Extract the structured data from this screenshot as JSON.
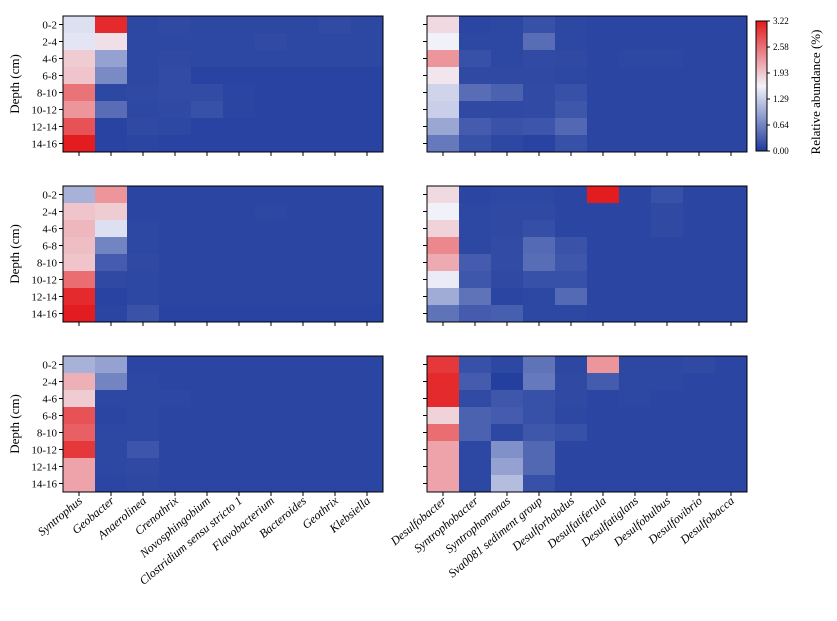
{
  "chart_data": {
    "type": "heatmap",
    "ylabel": "Depth (cm)",
    "depths": [
      "0-2",
      "2-4",
      "4-6",
      "6-8",
      "8-10",
      "10-12",
      "12-14",
      "14-16"
    ],
    "left_genera": [
      "Syntrophus",
      "Geobacter",
      "Anaerolinea",
      "Crenothrix",
      "Novosphingobium",
      "Clostridium sensu stricto 1",
      "Flavobacterium",
      "Bacteroides",
      "Geothrix",
      "Klebsiella"
    ],
    "right_genera": [
      "Desulfobacter",
      "Syntrophobacter",
      "Syntrophomonas",
      "Sva0081 sediment group",
      "Desulforhabdus",
      "Desulfatiferula",
      "Desulfatiglans",
      "Desulfobulbus",
      "Desulfovibrio",
      "Desulfobacca"
    ],
    "colorbar": {
      "label": "Relative abundance (%)",
      "min": 0.0,
      "max": 3.22,
      "ticks": [
        "3.22",
        "2.58",
        "1.93",
        "1.29",
        "0.64",
        "0.00"
      ],
      "colors": [
        "#1d3a9c",
        "#f2f2fa",
        "#e31a1c"
      ]
    },
    "panels": [
      {
        "name": "row1-left",
        "values": [
          [
            1.45,
            3.1,
            0.12,
            0.14,
            0.12,
            0.12,
            0.12,
            0.12,
            0.15,
            0.12
          ],
          [
            1.5,
            1.75,
            0.12,
            0.12,
            0.12,
            0.12,
            0.15,
            0.12,
            0.12,
            0.12
          ],
          [
            1.9,
            0.9,
            0.12,
            0.14,
            0.12,
            0.12,
            0.12,
            0.12,
            0.12,
            0.12
          ],
          [
            1.95,
            0.7,
            0.12,
            0.16,
            0.08,
            0.08,
            0.08,
            0.08,
            0.08,
            0.08
          ],
          [
            2.55,
            0.12,
            0.14,
            0.16,
            0.16,
            0.1,
            0.08,
            0.08,
            0.08,
            0.08
          ],
          [
            2.3,
            0.45,
            0.12,
            0.14,
            0.2,
            0.1,
            0.08,
            0.08,
            0.08,
            0.08
          ],
          [
            2.8,
            0.08,
            0.14,
            0.12,
            0.08,
            0.08,
            0.08,
            0.08,
            0.08,
            0.08
          ],
          [
            3.2,
            0.08,
            0.1,
            0.08,
            0.08,
            0.08,
            0.08,
            0.08,
            0.08,
            0.08
          ]
        ]
      },
      {
        "name": "row1-right",
        "values": [
          [
            1.8,
            0.1,
            0.12,
            0.2,
            0.12,
            0.1,
            0.1,
            0.1,
            0.1,
            0.1
          ],
          [
            1.6,
            0.12,
            0.12,
            0.45,
            0.12,
            0.1,
            0.1,
            0.1,
            0.1,
            0.1
          ],
          [
            2.3,
            0.2,
            0.12,
            0.15,
            0.14,
            0.1,
            0.12,
            0.12,
            0.1,
            0.1
          ],
          [
            1.7,
            0.14,
            0.14,
            0.14,
            0.12,
            0.1,
            0.1,
            0.1,
            0.1,
            0.1
          ],
          [
            1.35,
            0.45,
            0.35,
            0.15,
            0.2,
            0.1,
            0.1,
            0.1,
            0.1,
            0.1
          ],
          [
            1.3,
            0.14,
            0.14,
            0.15,
            0.25,
            0.1,
            0.1,
            0.1,
            0.1,
            0.1
          ],
          [
            0.95,
            0.3,
            0.22,
            0.24,
            0.4,
            0.1,
            0.1,
            0.1,
            0.1,
            0.1
          ],
          [
            0.55,
            0.2,
            0.12,
            0.08,
            0.2,
            0.1,
            0.1,
            0.1,
            0.1,
            0.1
          ]
        ]
      },
      {
        "name": "row2-left",
        "values": [
          [
            1.05,
            2.3,
            0.1,
            0.1,
            0.1,
            0.1,
            0.1,
            0.1,
            0.1,
            0.1
          ],
          [
            1.95,
            1.9,
            0.1,
            0.1,
            0.1,
            0.1,
            0.12,
            0.1,
            0.1,
            0.1
          ],
          [
            2.05,
            1.45,
            0.12,
            0.1,
            0.1,
            0.1,
            0.1,
            0.1,
            0.1,
            0.1
          ],
          [
            2.0,
            0.65,
            0.12,
            0.1,
            0.1,
            0.1,
            0.1,
            0.1,
            0.1,
            0.1
          ],
          [
            1.95,
            0.3,
            0.14,
            0.1,
            0.1,
            0.1,
            0.1,
            0.1,
            0.1,
            0.1
          ],
          [
            2.6,
            0.14,
            0.12,
            0.1,
            0.1,
            0.1,
            0.1,
            0.1,
            0.1,
            0.1
          ],
          [
            3.1,
            0.08,
            0.12,
            0.1,
            0.1,
            0.1,
            0.1,
            0.1,
            0.1,
            0.1
          ],
          [
            3.2,
            0.1,
            0.22,
            0.08,
            0.08,
            0.08,
            0.08,
            0.08,
            0.08,
            0.08
          ]
        ]
      },
      {
        "name": "row2-right",
        "values": [
          [
            1.8,
            0.1,
            0.12,
            0.12,
            0.1,
            3.2,
            0.1,
            0.2,
            0.1,
            0.1
          ],
          [
            1.6,
            0.12,
            0.14,
            0.14,
            0.1,
            0.1,
            0.1,
            0.14,
            0.1,
            0.1
          ],
          [
            1.85,
            0.12,
            0.14,
            0.18,
            0.1,
            0.1,
            0.1,
            0.14,
            0.1,
            0.1
          ],
          [
            2.4,
            0.12,
            0.16,
            0.42,
            0.22,
            0.1,
            0.1,
            0.1,
            0.1,
            0.1
          ],
          [
            2.15,
            0.3,
            0.16,
            0.45,
            0.25,
            0.1,
            0.1,
            0.1,
            0.1,
            0.1
          ],
          [
            1.55,
            0.25,
            0.14,
            0.2,
            0.2,
            0.1,
            0.1,
            0.1,
            0.1,
            0.1
          ],
          [
            1.0,
            0.5,
            0.1,
            0.12,
            0.42,
            0.1,
            0.1,
            0.1,
            0.1,
            0.1
          ],
          [
            0.5,
            0.3,
            0.32,
            0.12,
            0.12,
            0.1,
            0.1,
            0.1,
            0.1,
            0.1
          ]
        ]
      },
      {
        "name": "row3-left",
        "values": [
          [
            1.05,
            0.9,
            0.1,
            0.1,
            0.1,
            0.1,
            0.1,
            0.1,
            0.1,
            0.1
          ],
          [
            2.1,
            0.65,
            0.12,
            0.1,
            0.1,
            0.1,
            0.1,
            0.1,
            0.1,
            0.1
          ],
          [
            1.9,
            0.12,
            0.12,
            0.12,
            0.1,
            0.1,
            0.1,
            0.1,
            0.1,
            0.1
          ],
          [
            2.8,
            0.1,
            0.12,
            0.1,
            0.1,
            0.1,
            0.1,
            0.1,
            0.1,
            0.1
          ],
          [
            2.7,
            0.12,
            0.12,
            0.1,
            0.1,
            0.1,
            0.1,
            0.1,
            0.1,
            0.1
          ],
          [
            3.0,
            0.12,
            0.24,
            0.1,
            0.1,
            0.1,
            0.1,
            0.1,
            0.1,
            0.1
          ],
          [
            2.2,
            0.12,
            0.14,
            0.1,
            0.1,
            0.1,
            0.1,
            0.1,
            0.1,
            0.1
          ],
          [
            2.2,
            0.1,
            0.12,
            0.1,
            0.1,
            0.1,
            0.1,
            0.1,
            0.1,
            0.1
          ]
        ]
      },
      {
        "name": "row3-right",
        "values": [
          [
            3.0,
            0.2,
            0.12,
            0.5,
            0.12,
            2.3,
            0.12,
            0.12,
            0.14,
            0.1
          ],
          [
            3.1,
            0.3,
            0.05,
            0.55,
            0.14,
            0.3,
            0.12,
            0.12,
            0.1,
            0.1
          ],
          [
            3.1,
            0.15,
            0.25,
            0.2,
            0.14,
            0.1,
            0.12,
            0.1,
            0.1,
            0.1
          ],
          [
            1.85,
            0.35,
            0.3,
            0.2,
            0.12,
            0.1,
            0.1,
            0.1,
            0.1,
            0.1
          ],
          [
            2.6,
            0.35,
            0.12,
            0.25,
            0.2,
            0.1,
            0.1,
            0.1,
            0.1,
            0.1
          ],
          [
            2.2,
            0.12,
            0.75,
            0.4,
            0.1,
            0.1,
            0.1,
            0.1,
            0.1,
            0.1
          ],
          [
            2.2,
            0.12,
            0.9,
            0.4,
            0.1,
            0.1,
            0.1,
            0.1,
            0.1,
            0.1
          ],
          [
            2.2,
            0.12,
            1.15,
            0.2,
            0.1,
            0.1,
            0.1,
            0.1,
            0.1,
            0.1
          ]
        ]
      }
    ]
  }
}
